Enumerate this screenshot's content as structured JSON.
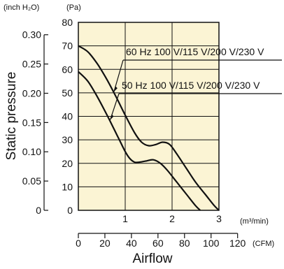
{
  "chart_data": {
    "type": "line",
    "colors": {
      "plot_background": "#fbf4d4",
      "line": "#111111",
      "grid": "#111111"
    },
    "grid": true,
    "legend": "inline-labels",
    "ylabel": "Static pressure",
    "xlabel": "Airflow",
    "y_unit_left": "(inch H₂O)",
    "y_unit_right": "(Pa)",
    "x_unit_primary": "(m³/min)",
    "x_unit_secondary": "(CFM)",
    "xlim": [
      0,
      3
    ],
    "ylim_pa": [
      0,
      80
    ],
    "x_ticks": [
      "1",
      "2",
      "3"
    ],
    "y_ticks_pa": [
      "0",
      "10",
      "20",
      "30",
      "40",
      "50",
      "60",
      "70",
      "80"
    ],
    "y_ticks_inch": [
      "0",
      "0.05",
      "0.10",
      "0.15",
      "0.20",
      "0.25",
      "0.30"
    ],
    "cfm_ticks": [
      "0",
      "20",
      "40",
      "60",
      "80",
      "100",
      "120"
    ],
    "series": [
      {
        "name": "60 Hz 100 V/115 V/200 V/230 V",
        "x": [
          0,
          0.2,
          0.4,
          0.6,
          0.8,
          1.0,
          1.2,
          1.35,
          1.5,
          1.65,
          1.8,
          1.95,
          2.1,
          2.3,
          2.5,
          2.7,
          2.9,
          3.0
        ],
        "y": [
          70,
          67.5,
          62.5,
          56,
          48.5,
          40.5,
          33,
          29,
          27.5,
          28,
          29,
          28,
          24,
          18,
          12,
          7,
          2,
          0
        ]
      },
      {
        "name": "50 Hz 100 V/115 V/200 V/230 V",
        "x": [
          0,
          0.2,
          0.4,
          0.6,
          0.8,
          0.9,
          1.0,
          1.1,
          1.2,
          1.3,
          1.45,
          1.6,
          1.75,
          1.9,
          2.1,
          2.3,
          2.5,
          2.6
        ],
        "y": [
          59,
          55,
          48.5,
          41,
          33,
          29,
          25,
          22,
          20.5,
          20.5,
          21,
          21.5,
          20,
          17,
          12,
          7,
          2,
          0
        ]
      }
    ]
  }
}
